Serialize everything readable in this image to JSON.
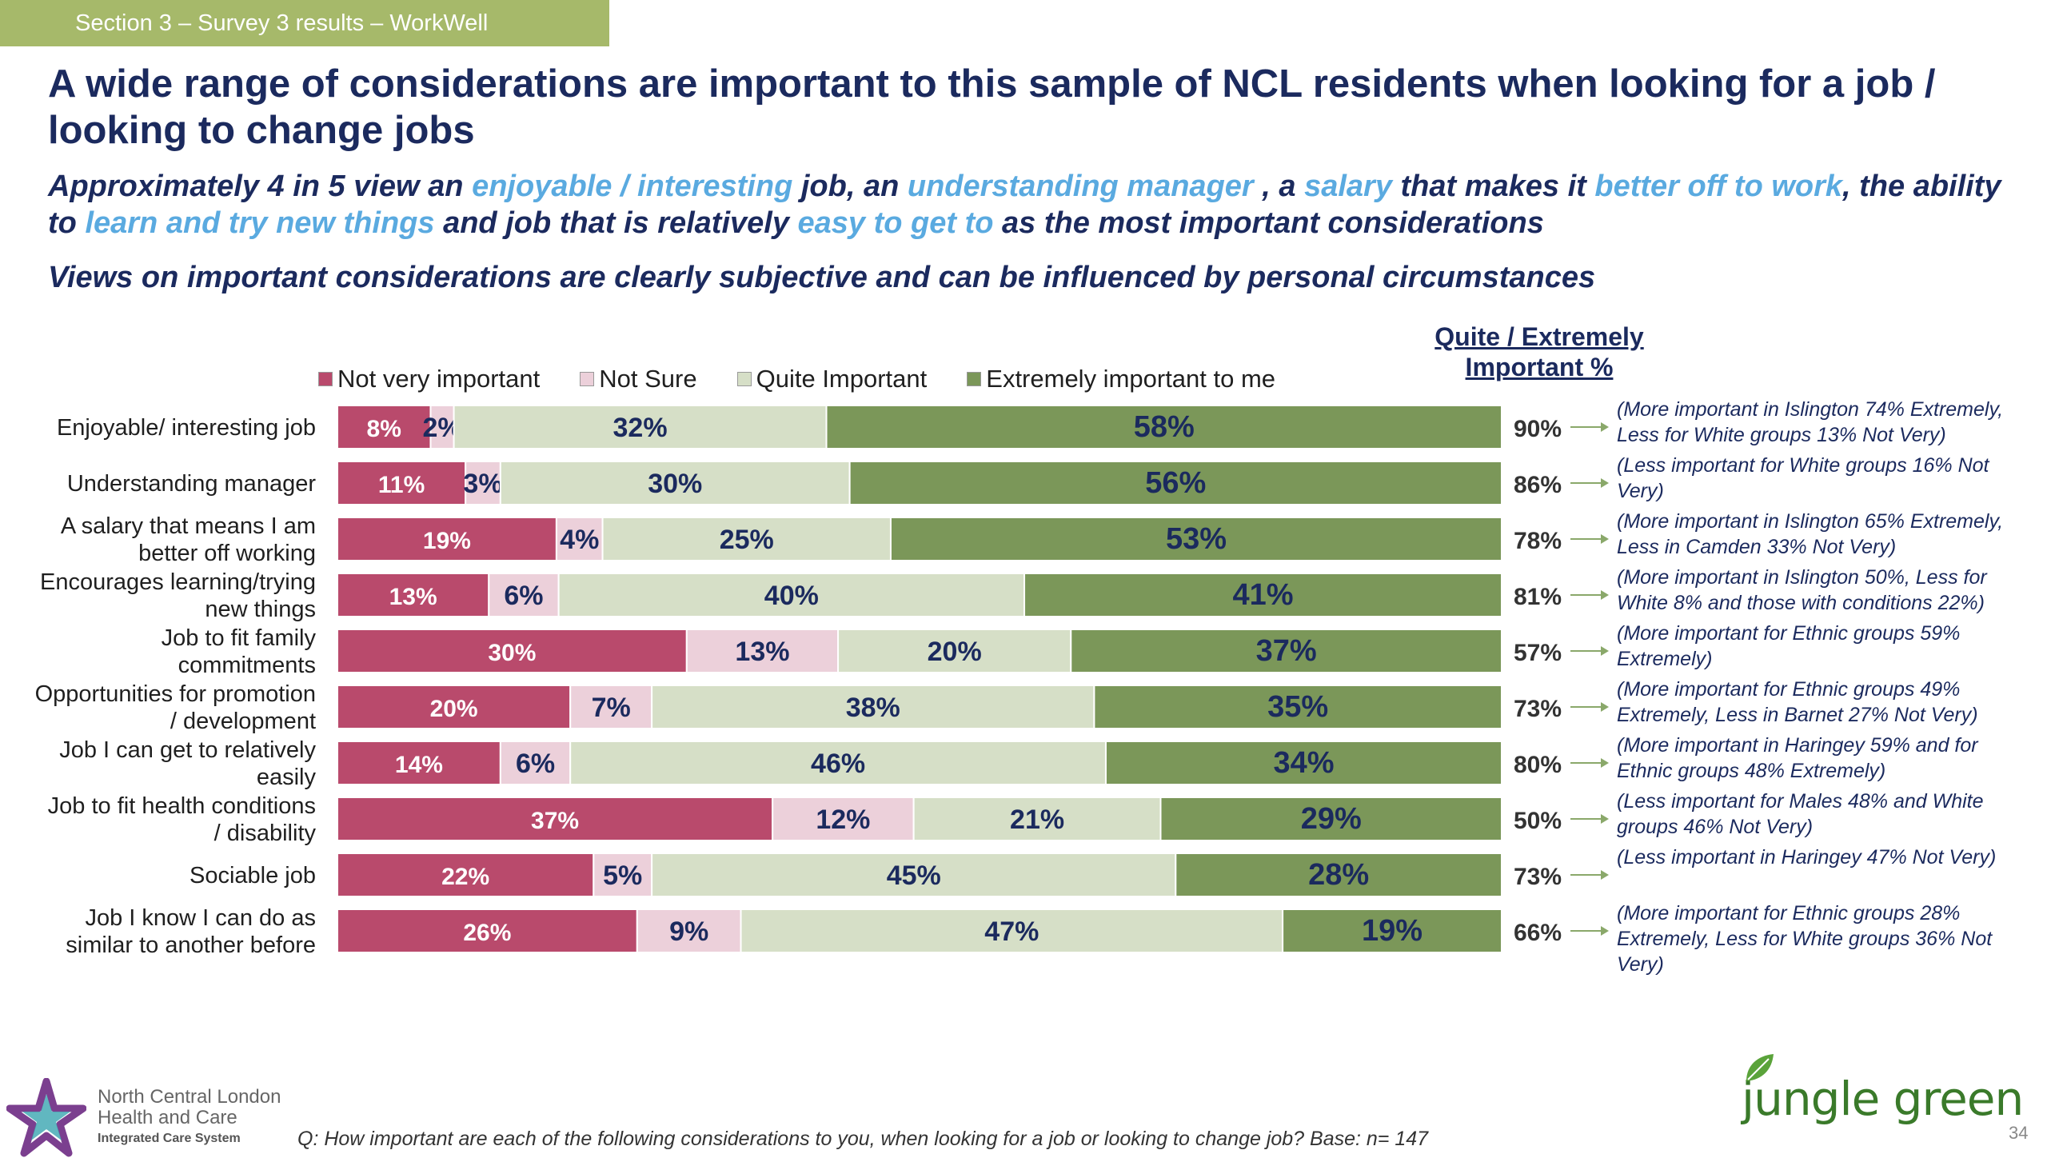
{
  "section_tab": "Section 3 – Survey 3 results – WorkWell",
  "headline": "A wide range of considerations are important to this sample of NCL residents when looking for a job / looking to change jobs",
  "subhead": {
    "p1": "Approximately 4 in 5 view an ",
    "h1": "enjoyable / interesting",
    "p2": " job, an ",
    "h2": "understanding manager",
    "p3": " , a ",
    "h3": "salary",
    "p4": " that makes it ",
    "h4": "better off to work",
    "p5": ", the ability to ",
    "h5": "learn and try new things",
    "p6": " and job that is relatively ",
    "h6": "easy to get to",
    "p7": " as the most important considerations"
  },
  "subhead2": "Views on important considerations are clearly subjective and can be influenced by personal circumstances",
  "qe_header": "Quite / Extremely Important %",
  "legend": [
    {
      "label": "Not very important",
      "color": "#b94a6c"
    },
    {
      "label": "Not Sure",
      "color": "#ecd0da"
    },
    {
      "label": "Quite Important",
      "color": "#d6dfc7"
    },
    {
      "label": "Extremely important to me",
      "color": "#7b9759"
    }
  ],
  "chart_data": {
    "type": "bar",
    "orientation": "horizontal-stacked",
    "series_names": [
      "Not very important",
      "Not Sure",
      "Quite Important",
      "Extremely important to me"
    ],
    "colors": [
      "#b94a6c",
      "#ecd0da",
      "#d6dfc7",
      "#7b9759"
    ],
    "rows": [
      {
        "label": "Enjoyable/ interesting job",
        "values": [
          8,
          2,
          32,
          58
        ],
        "value_labels": [
          "8%",
          "2%",
          "32%",
          "58%"
        ],
        "total": "90%",
        "note": "(More important in Islington 74% Extremely, Less for White groups 13% Not Very)"
      },
      {
        "label": "Understanding manager",
        "values": [
          11,
          3,
          30,
          56
        ],
        "value_labels": [
          "11%",
          "3%",
          "30%",
          "56%"
        ],
        "total": "86%",
        "note": "(Less important for White groups 16% Not Very)"
      },
      {
        "label": "A salary that means I am better off working",
        "values": [
          19,
          4,
          25,
          53
        ],
        "value_labels": [
          "19%",
          "4%",
          "25%",
          "53%"
        ],
        "total": "78%",
        "note": "(More important in Islington 65% Extremely, Less in Camden 33% Not Very)"
      },
      {
        "label": "Encourages learning/trying new things",
        "values": [
          13,
          6,
          40,
          41
        ],
        "value_labels": [
          "13%",
          "6%",
          "40%",
          "41%"
        ],
        "total": "81%",
        "note": "(More important in Islington 50%, Less for White 8% and those with conditions 22%)"
      },
      {
        "label": "Job to fit family commitments",
        "values": [
          30,
          13,
          20,
          37
        ],
        "value_labels": [
          "30%",
          "13%",
          "20%",
          "37%"
        ],
        "total": "57%",
        "note": "(More important for Ethnic groups 59% Extremely)"
      },
      {
        "label": "Opportunities for promotion / development",
        "values": [
          20,
          7,
          38,
          35
        ],
        "value_labels": [
          "20%",
          "7%",
          "38%",
          "35%"
        ],
        "total": "73%",
        "note": "(More important for Ethnic groups 49% Extremely,  Less in Barnet 27% Not Very)"
      },
      {
        "label": "Job I can get to relatively easily",
        "values": [
          14,
          6,
          46,
          34
        ],
        "value_labels": [
          "14%",
          "6%",
          "46%",
          "34%"
        ],
        "total": "80%",
        "note": "(More important in Haringey 59% and for Ethnic groups 48% Extremely)"
      },
      {
        "label": "Job to fit health conditions / disability",
        "values": [
          37,
          12,
          21,
          29
        ],
        "value_labels": [
          "37%",
          "12%",
          "21%",
          "29%"
        ],
        "total": "50%",
        "note": "(Less important for Males 48% and White groups 46% Not Very)"
      },
      {
        "label": "Sociable job",
        "values": [
          22,
          5,
          45,
          28
        ],
        "value_labels": [
          "22%",
          "5%",
          "45%",
          "28%"
        ],
        "total": "73%",
        "note": "(Less  important in Haringey  47% Not Very)"
      },
      {
        "label": "Job I know I can do as similar to another before",
        "values": [
          26,
          9,
          47,
          19
        ],
        "value_labels": [
          "26%",
          "9%",
          "47%",
          "19%"
        ],
        "total": "66%",
        "note": "(More important for Ethnic groups 28% Extremely,  Less for White groups 36% Not Very)"
      }
    ]
  },
  "footer_question": "Q: How important are each of the following considerations to you, when looking for a job or looking to change job? Base: n= 147",
  "logo_ncl": {
    "line1": "North Central London",
    "line2": "Health and Care",
    "line3": "Integrated Care System"
  },
  "logo_jg": "jungle green",
  "page_number": "34"
}
